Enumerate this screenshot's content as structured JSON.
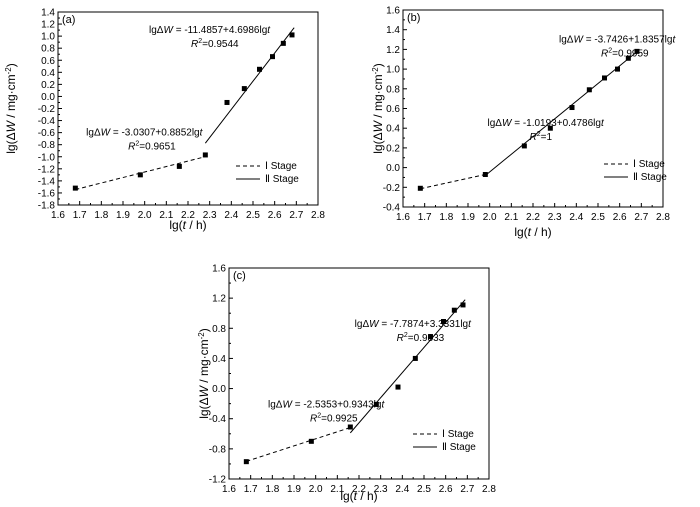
{
  "chart_data": [
    {
      "type": "scatter",
      "panel_label": "(a)",
      "xlabel_pre": "lg(",
      "xlabel_var": "t",
      "xlabel_post": " / h)",
      "ylabel_pre": "lg(Δ",
      "ylabel_var": "W",
      "ylabel_post": " / mg·cm",
      "ylabel_sup": "-2",
      "ylabel_close": ")",
      "xlim": [
        1.6,
        2.8
      ],
      "ylim": [
        -1.8,
        1.4
      ],
      "xticks": [
        "1.6",
        "1.7",
        "1.8",
        "1.9",
        "2.0",
        "2.1",
        "2.2",
        "2.3",
        "2.4",
        "2.5",
        "2.6",
        "2.7",
        "2.8"
      ],
      "yticks": [
        "-1.8",
        "-1.6",
        "-1.4",
        "-1.2",
        "-1.0",
        "-0.8",
        "-0.6",
        "-0.4",
        "-0.2",
        "0.0",
        "0.2",
        "0.4",
        "0.6",
        "0.8",
        "1.0",
        "1.2",
        "1.4"
      ],
      "points": [
        [
          1.68,
          -1.52
        ],
        [
          1.98,
          -1.3
        ],
        [
          2.16,
          -1.16
        ],
        [
          2.28,
          -0.97
        ],
        [
          2.38,
          -0.1
        ],
        [
          2.46,
          0.13
        ],
        [
          2.53,
          0.45
        ],
        [
          2.59,
          0.66
        ],
        [
          2.64,
          0.88
        ],
        [
          2.68,
          1.02
        ]
      ],
      "fits": [
        {
          "stage": "I",
          "style": "dashed",
          "x": [
            1.68,
            2.28
          ],
          "y": [
            -1.544,
            -0.999
          ]
        },
        {
          "stage": "II",
          "style": "solid",
          "x": [
            2.28,
            2.69
          ],
          "y": [
            -0.775,
            1.14
          ]
        }
      ],
      "annotations": [
        {
          "eq_pre": "lgΔ",
          "eq_var": "W",
          "eq_mid": " = -11.4857+4.6986lg",
          "eq_var2": "t",
          "r2": "=0.9544",
          "x": 2.02,
          "y": 1.05
        },
        {
          "eq_pre": "lgΔ",
          "eq_var": "W",
          "eq_mid": " = -3.0307+0.8852lg",
          "eq_var2": "t",
          "r2": "=0.9651",
          "x": 1.73,
          "y": -0.65
        }
      ],
      "legend": [
        "Ⅰ Stage",
        "Ⅱ Stage"
      ]
    },
    {
      "type": "scatter",
      "panel_label": "(b)",
      "xlabel_pre": "lg(",
      "xlabel_var": "t",
      "xlabel_post": " / h)",
      "ylabel_pre": "lg(Δ",
      "ylabel_var": "W",
      "ylabel_post": " / mg·cm",
      "ylabel_sup": "-2",
      "ylabel_close": ")",
      "xlim": [
        1.6,
        2.8
      ],
      "ylim": [
        -0.4,
        1.6
      ],
      "xticks": [
        "1.6",
        "1.7",
        "1.8",
        "1.9",
        "2.0",
        "2.1",
        "2.2",
        "2.3",
        "2.4",
        "2.5",
        "2.6",
        "2.7",
        "2.8"
      ],
      "yticks": [
        "-0.4",
        "-0.2",
        "0.0",
        "0.2",
        "0.4",
        "0.6",
        "0.8",
        "1.0",
        "1.2",
        "1.4",
        "1.6"
      ],
      "points": [
        [
          1.68,
          -0.21
        ],
        [
          1.98,
          -0.07
        ],
        [
          2.16,
          0.22
        ],
        [
          2.28,
          0.4
        ],
        [
          2.38,
          0.61
        ],
        [
          2.46,
          0.79
        ],
        [
          2.53,
          0.91
        ],
        [
          2.59,
          1.0
        ],
        [
          2.64,
          1.11
        ],
        [
          2.68,
          1.18
        ]
      ],
      "fits": [
        {
          "stage": "I",
          "style": "dashed",
          "x": [
            1.68,
            1.98
          ],
          "y": [
            -0.215,
            -0.07
          ]
        },
        {
          "stage": "II",
          "style": "solid",
          "x": [
            1.98,
            2.69
          ],
          "y": [
            -0.08,
            1.195
          ]
        }
      ],
      "annotations": [
        {
          "eq_pre": "lgΔ",
          "eq_var": "W",
          "eq_mid": " = -3.7426+1.8357lg",
          "eq_var2": "t",
          "r2": "=0.9959",
          "x": 2.32,
          "y": 1.27
        },
        {
          "eq_pre": "lgΔ",
          "eq_var": "W",
          "eq_mid": " = -1.0193+0.4786lg",
          "eq_var2": "t",
          "r2": "=1",
          "x": 1.99,
          "y": 0.42
        }
      ],
      "legend": [
        "Ⅰ Stage",
        "Ⅱ Stage"
      ]
    },
    {
      "type": "scatter",
      "panel_label": "(c)",
      "xlabel_pre": "lg(",
      "xlabel_var": "t",
      "xlabel_post": " / h)",
      "ylabel_pre": "lg(Δ",
      "ylabel_var": "W",
      "ylabel_post": " / mg·cm",
      "ylabel_sup": "-2",
      "ylabel_close": ")",
      "xlim": [
        1.6,
        2.8
      ],
      "ylim": [
        -1.2,
        1.6
      ],
      "xticks": [
        "1.6",
        "1.7",
        "1.8",
        "1.9",
        "2.0",
        "2.1",
        "2.2",
        "2.3",
        "2.4",
        "2.5",
        "2.6",
        "2.7",
        "2.8"
      ],
      "yticks": [
        "-1.2",
        "-0.8",
        "-0.4",
        "0.0",
        "0.4",
        "0.8",
        "1.2",
        "1.6"
      ],
      "points": [
        [
          1.68,
          -0.97
        ],
        [
          1.98,
          -0.7
        ],
        [
          2.16,
          -0.51
        ],
        [
          2.28,
          -0.21
        ],
        [
          2.38,
          0.02
        ],
        [
          2.46,
          0.4
        ],
        [
          2.53,
          0.69
        ],
        [
          2.59,
          0.89
        ],
        [
          2.64,
          1.04
        ],
        [
          2.68,
          1.11
        ]
      ],
      "fits": [
        {
          "stage": "I",
          "style": "dashed",
          "x": [
            1.68,
            2.16
          ],
          "y": [
            -0.966,
            -0.517
          ]
        },
        {
          "stage": "II",
          "style": "solid",
          "x": [
            2.16,
            2.69
          ],
          "y": [
            -0.588,
            1.179
          ]
        }
      ],
      "annotations": [
        {
          "eq_pre": "lgΔ",
          "eq_var": "W",
          "eq_mid": " = -7.7874+3.3331lg",
          "eq_var2": "t",
          "r2": "=0.9833",
          "x": 2.18,
          "y": 0.82
        },
        {
          "eq_pre": "lgΔ",
          "eq_var": "W",
          "eq_mid": " = -2.5353+0.9343lg",
          "eq_var2": "t",
          "r2": "=0.9925",
          "x": 1.78,
          "y": -0.25
        }
      ],
      "legend": [
        "Ⅰ Stage",
        "Ⅱ Stage"
      ]
    }
  ]
}
